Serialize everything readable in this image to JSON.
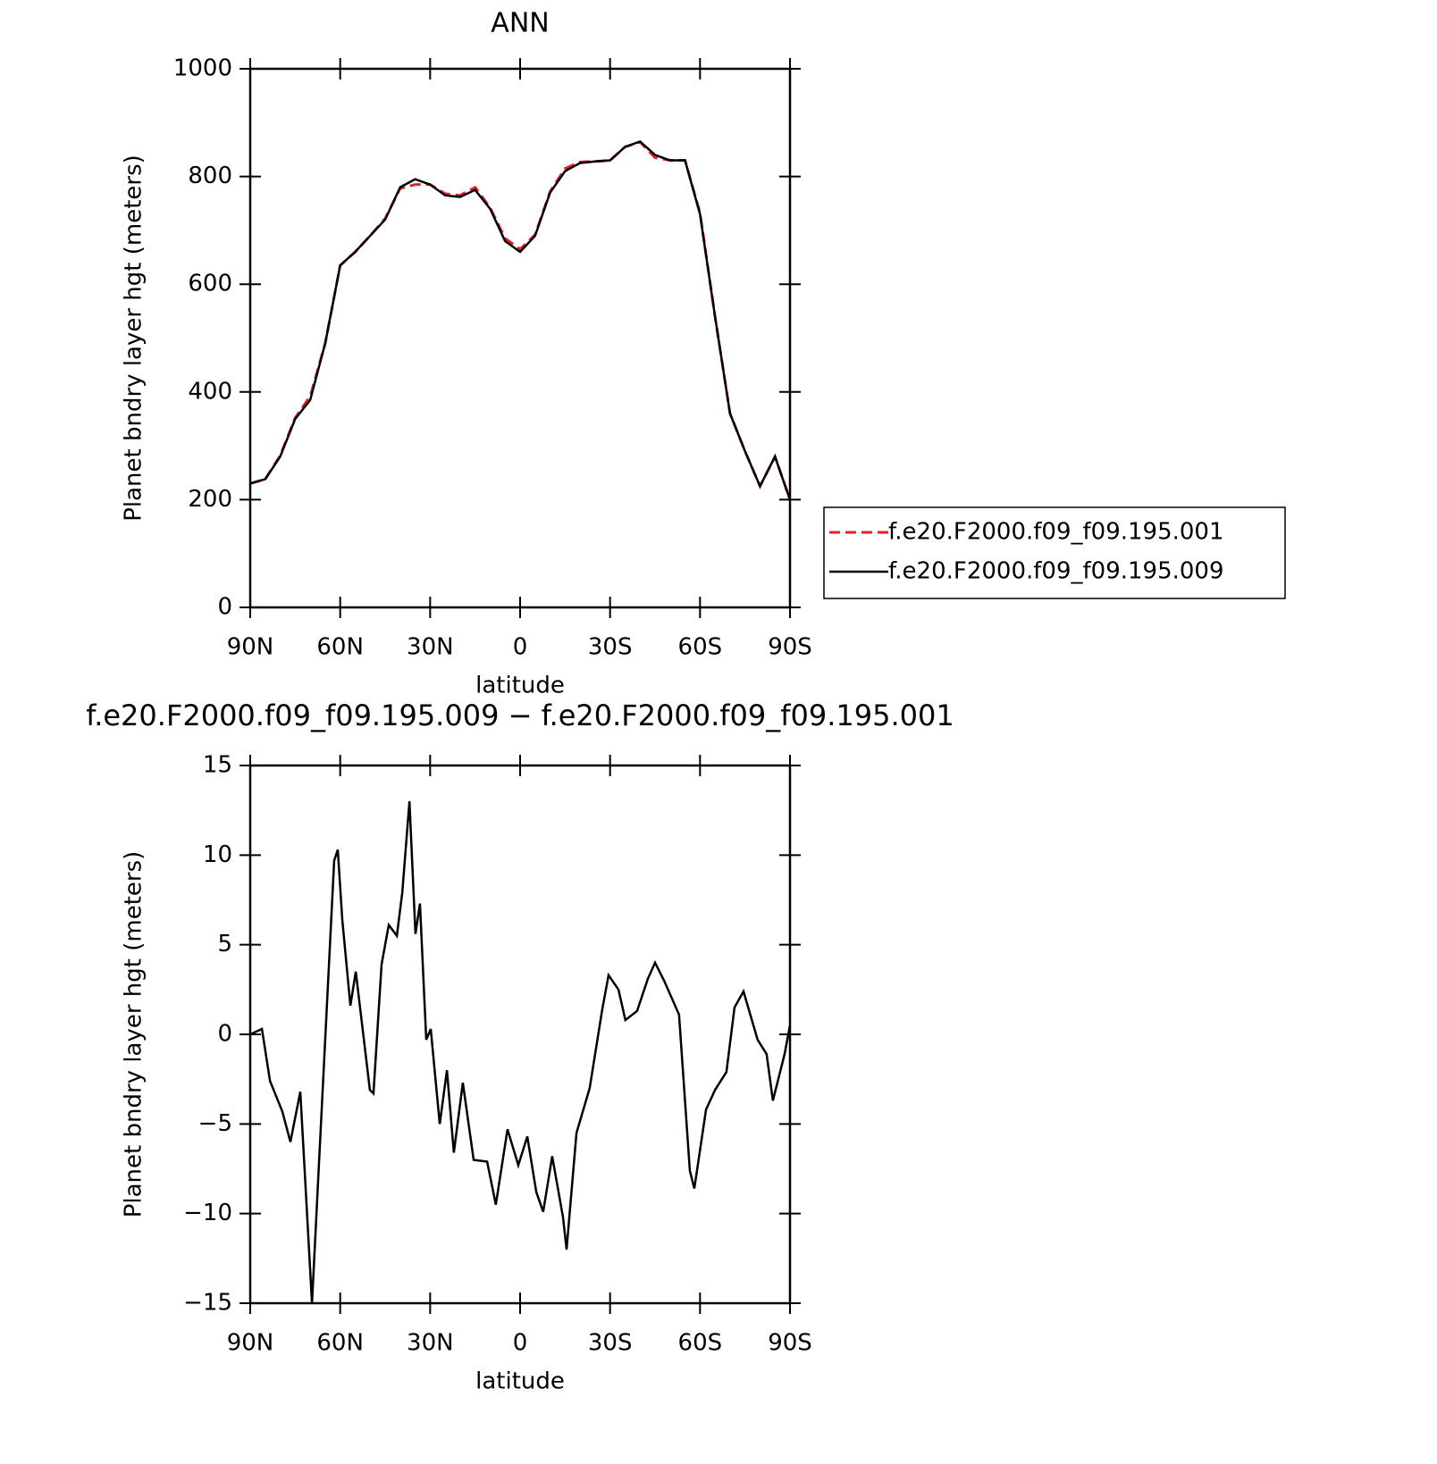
{
  "chart_data": [
    {
      "type": "line",
      "title": "ANN",
      "x_label": "latitude",
      "y_label": "Planet bndry layer hgt (meters)",
      "x": [
        90,
        85,
        80,
        75,
        70,
        65,
        60,
        55,
        50,
        45,
        40,
        35,
        30,
        25,
        20,
        15,
        10,
        5,
        0,
        -5,
        -10,
        -15,
        -20,
        -25,
        -30,
        -35,
        -40,
        -45,
        -50,
        -55,
        -60,
        -65,
        -70,
        -75,
        -80,
        -85,
        -90
      ],
      "series": [
        {
          "name": "f.e20.F2000.f09_f09.195.001",
          "color": "#e8202a",
          "dash": true,
          "values": [
            230,
            238,
            282,
            352,
            392,
            490,
            635,
            660,
            690,
            722,
            778,
            785,
            785,
            768,
            765,
            780,
            742,
            685,
            665,
            692,
            772,
            815,
            827,
            828,
            830,
            855,
            864,
            835,
            830,
            830,
            732,
            540,
            360,
            290,
            225,
            280,
            200
          ]
        },
        {
          "name": "f.e20.F2000.f09_f09.195.009",
          "color": "#000000",
          "dash": false,
          "values": [
            230,
            238,
            280,
            350,
            385,
            490,
            635,
            660,
            690,
            720,
            780,
            795,
            785,
            765,
            762,
            775,
            740,
            680,
            660,
            690,
            770,
            810,
            825,
            828,
            830,
            855,
            865,
            840,
            830,
            830,
            730,
            540,
            360,
            290,
            225,
            280,
            200
          ]
        }
      ],
      "xlim": [
        90,
        -90
      ],
      "xticks": [
        {
          "value": 90,
          "label": "90N"
        },
        {
          "value": 60,
          "label": "60N"
        },
        {
          "value": 30,
          "label": "30N"
        },
        0,
        {
          "value": -30,
          "label": "30S"
        },
        {
          "value": -60,
          "label": "60S"
        },
        {
          "value": -90,
          "label": "90S"
        }
      ],
      "ylim": [
        0,
        1000
      ],
      "yticks": [
        0,
        200,
        400,
        600,
        800,
        1000
      ],
      "legend": "right"
    },
    {
      "type": "line",
      "title": "f.e20.F2000.f09_f09.195.009 − f.e20.F2000.f09_f09.195.001",
      "x_label": "latitude",
      "y_label": "Planet bndry layer hgt (meters)",
      "x": [
        90,
        86.1,
        83.4,
        79.3,
        76.6,
        73.3,
        69.4,
        66.2,
        62,
        60.8,
        59.3,
        56.6,
        54.8,
        50.1,
        48.9,
        46.2,
        43.8,
        41.1,
        39.3,
        36.9,
        34.9,
        33.4,
        31.3,
        29.8,
        26.8,
        24.4,
        22.1,
        19.1,
        15.5,
        11,
        8.1,
        4.2,
        0.6,
        -2.4,
        -5.4,
        -7.7,
        -10.7,
        -14.3,
        -15.5,
        -18.8,
        -23.2,
        -27.4,
        -29.5,
        -32.8,
        -35.1,
        -39,
        -42.6,
        -45,
        -48,
        -53,
        -56.6,
        -58.1,
        -62,
        -65,
        -68.8,
        -71.5,
        -74.5,
        -79.2,
        -82.2,
        -84.3,
        -88.2,
        -90
      ],
      "series": [
        {
          "name": "f.e20.F2000.f09_f09.195.009 − f.e20.F2000.f09_f09.195.001",
          "color": "#000000",
          "dash": false,
          "values": [
            0,
            0.3,
            -2.6,
            -4.3,
            -6,
            -3.2,
            -15,
            -4.3,
            9.7,
            10.3,
            6.4,
            1.6,
            3.5,
            -3.1,
            -3.3,
            3.9,
            6.1,
            5.5,
            7.9,
            13,
            5.6,
            7.3,
            -0.3,
            0.3,
            -5,
            -2,
            -6.6,
            -2.7,
            -7,
            -7.1,
            -9.5,
            -5.3,
            -7.3,
            -5.7,
            -8.8,
            -9.9,
            -6.8,
            -10.2,
            -12,
            -5.5,
            -3,
            1.4,
            3.3,
            2.5,
            0.8,
            1.3,
            3.1,
            4,
            3,
            1.1,
            -7.6,
            -8.6,
            -4.2,
            -3.1,
            -2.1,
            1.5,
            2.4,
            -0.3,
            -1.1,
            -3.7,
            -1.1,
            0.5
          ]
        }
      ],
      "xlim": [
        90,
        -90
      ],
      "xticks": [
        {
          "value": 90,
          "label": "90N"
        },
        {
          "value": 60,
          "label": "60N"
        },
        {
          "value": 30,
          "label": "30N"
        },
        0,
        {
          "value": -30,
          "label": "30S"
        },
        {
          "value": -60,
          "label": "60S"
        },
        {
          "value": -90,
          "label": "90S"
        }
      ],
      "ylim": [
        -15,
        15
      ],
      "yticks": [
        {
          "value": -15,
          "label": "−15"
        },
        {
          "value": -10,
          "label": "−10"
        },
        {
          "value": -5,
          "label": "−5"
        },
        0,
        5,
        10,
        15
      ]
    }
  ]
}
